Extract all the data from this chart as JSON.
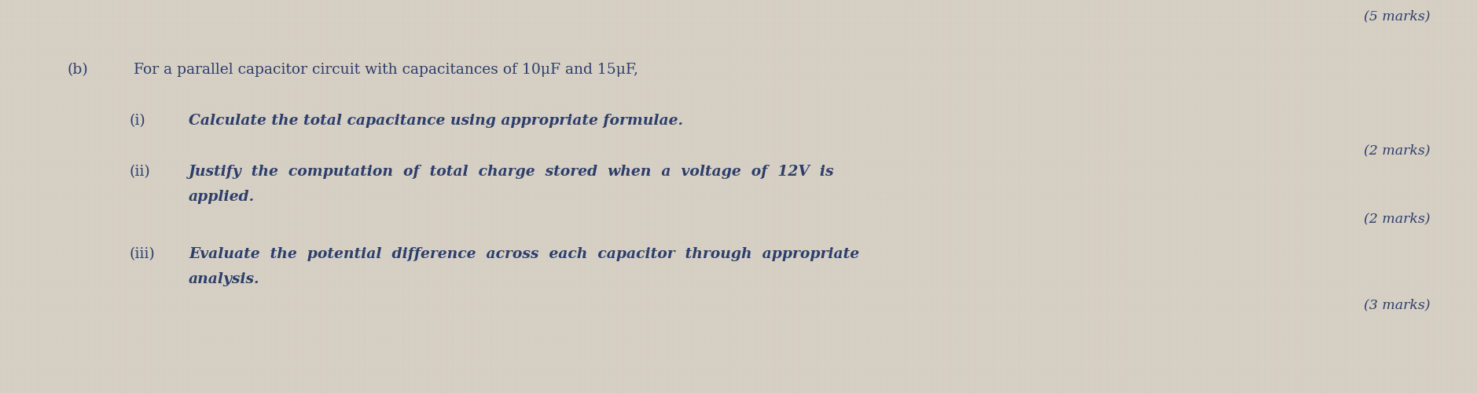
{
  "bg_color": "#d6cfc4",
  "text_color": "#2c3e6b",
  "top_right_text": "(5 marks)",
  "section_b_label": "(b)",
  "section_b_text": "For a parallel capacitor circuit with capacitances of 10μF and 15μF,",
  "part_i_label": "(i)",
  "part_i_text": "Calculate the total capacitance using appropriate formulae.",
  "part_i_marks": "(2 marks)",
  "part_ii_label": "(ii)",
  "part_ii_line1": "Justify  the  computation  of  total  charge  stored  when  a  voltage  of  12V  is",
  "part_ii_line2": "applied.",
  "part_ii_marks": "(2 marks)",
  "part_iii_label": "(iii)",
  "part_iii_line1": "Evaluate  the  potential  difference  across  each  capacitor  through  appropriate",
  "part_iii_line2": "analysis.",
  "part_iii_marks": "(3 marks)",
  "font_size_main": 13.5,
  "font_size_marks": 12.5,
  "font_family": "DejaVu Serif"
}
